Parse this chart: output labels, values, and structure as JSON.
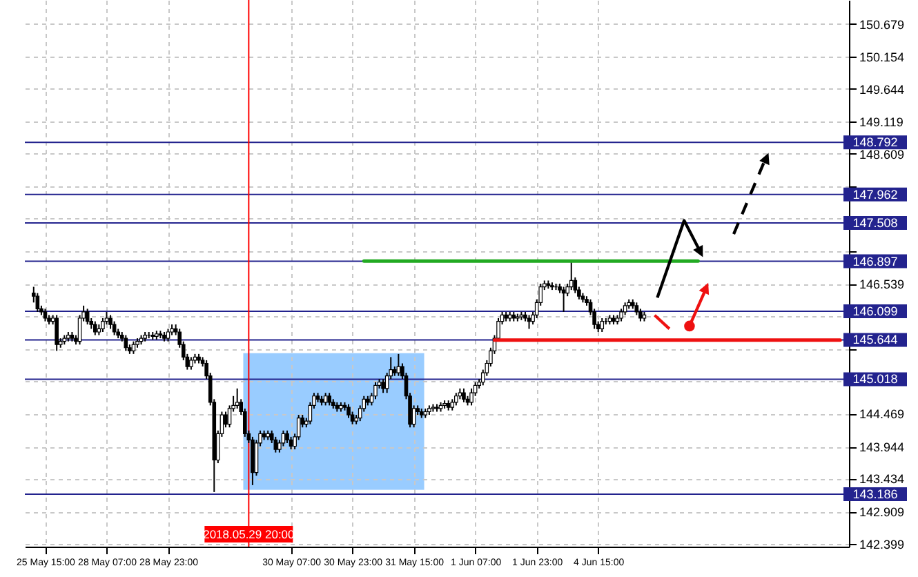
{
  "chart_data": {
    "type": "candlestick",
    "categories": [
      null,
      null,
      null,
      "25 May 15:00",
      null,
      null,
      null,
      null,
      null,
      null,
      null,
      null,
      null,
      null,
      null,
      null,
      null,
      null,
      null,
      "28 May 07:00",
      null,
      null,
      null,
      null,
      null,
      null,
      null,
      null,
      null,
      null,
      null,
      null,
      null,
      null,
      null,
      "28 May 23:00",
      null,
      null,
      null,
      null,
      null,
      null,
      null,
      null,
      null,
      null,
      null,
      null,
      null,
      null,
      null,
      null,
      null,
      null,
      null,
      null,
      "2018.05.29 20:00",
      null,
      null,
      null,
      null,
      null,
      null,
      null,
      null,
      null,
      null,
      "30 May 07:00",
      null,
      null,
      null,
      null,
      null,
      null,
      null,
      null,
      null,
      null,
      null,
      null,
      null,
      null,
      null,
      "30 May 23:00",
      null,
      null,
      null,
      null,
      null,
      null,
      null,
      null,
      null,
      null,
      null,
      null,
      null,
      null,
      null,
      "31 May 15:00",
      null,
      null,
      null,
      null,
      null,
      null,
      null,
      null,
      null,
      null,
      null,
      null,
      null,
      null,
      null,
      "1 Jun 07:00",
      null,
      null,
      null,
      null,
      null,
      null,
      null,
      null,
      null,
      null,
      null,
      null,
      null,
      null,
      null,
      "1 Jun 23:00",
      null,
      null,
      null,
      null,
      null,
      null,
      null,
      null,
      null,
      null,
      null,
      null,
      null,
      null,
      null,
      "4 Jun 15:00",
      null,
      null,
      null,
      null,
      null,
      null,
      null,
      null,
      null,
      null,
      null,
      null,
      null,
      null,
      null,
      null,
      null,
      null,
      null,
      null,
      null,
      null,
      null,
      null,
      null,
      null,
      null,
      null,
      null,
      null,
      null,
      null,
      null,
      null,
      null,
      null,
      null,
      null,
      null,
      null,
      null,
      null,
      null,
      null,
      null,
      null,
      null,
      null,
      null,
      null,
      null,
      null,
      null,
      null,
      null,
      null,
      null,
      null,
      null,
      null,
      null,
      null,
      null
    ],
    "ohlc": [
      [
        146.39,
        146.49,
        146.24,
        146.34
      ],
      [
        146.34,
        146.39,
        146.09,
        146.14
      ],
      [
        146.14,
        146.19,
        146.04,
        146.09
      ],
      [
        146.09,
        146.14,
        145.94,
        145.99
      ],
      [
        145.99,
        146.04,
        145.89,
        145.94
      ],
      [
        145.94,
        146.04,
        145.89,
        145.99
      ],
      [
        145.99,
        146.04,
        145.47,
        145.57
      ],
      [
        145.57,
        145.67,
        145.52,
        145.62
      ],
      [
        145.62,
        145.72,
        145.57,
        145.67
      ],
      [
        145.67,
        145.77,
        145.62,
        145.72
      ],
      [
        145.72,
        145.77,
        145.62,
        145.67
      ],
      [
        145.67,
        145.72,
        145.57,
        145.62
      ],
      [
        145.62,
        146.04,
        145.57,
        145.99
      ],
      [
        145.99,
        146.19,
        145.94,
        146.09
      ],
      [
        146.09,
        146.14,
        145.89,
        145.94
      ],
      [
        145.94,
        145.99,
        145.82,
        145.89
      ],
      [
        145.89,
        145.94,
        145.72,
        145.77
      ],
      [
        145.77,
        145.89,
        145.72,
        145.82
      ],
      [
        145.82,
        145.99,
        145.77,
        145.94
      ],
      [
        145.94,
        146.09,
        145.89,
        145.99
      ],
      [
        145.99,
        146.04,
        145.82,
        145.89
      ],
      [
        145.89,
        145.94,
        145.72,
        145.77
      ],
      [
        145.77,
        145.82,
        145.67,
        145.72
      ],
      [
        145.72,
        145.77,
        145.62,
        145.67
      ],
      [
        145.67,
        145.72,
        145.47,
        145.52
      ],
      [
        145.52,
        145.57,
        145.42,
        145.47
      ],
      [
        145.47,
        145.62,
        145.42,
        145.57
      ],
      [
        145.57,
        145.67,
        145.52,
        145.62
      ],
      [
        145.62,
        145.72,
        145.57,
        145.67
      ],
      [
        145.67,
        145.77,
        145.62,
        145.72
      ],
      [
        145.72,
        145.77,
        145.67,
        145.72
      ],
      [
        145.72,
        145.77,
        145.65,
        145.7
      ],
      [
        145.7,
        145.79,
        145.65,
        145.74
      ],
      [
        145.74,
        145.79,
        145.67,
        145.72
      ],
      [
        145.72,
        145.77,
        145.62,
        145.67
      ],
      [
        145.67,
        145.82,
        145.62,
        145.77
      ],
      [
        145.77,
        145.89,
        145.72,
        145.82
      ],
      [
        145.82,
        145.89,
        145.72,
        145.77
      ],
      [
        145.77,
        145.82,
        145.52,
        145.57
      ],
      [
        145.57,
        145.62,
        145.32,
        145.37
      ],
      [
        145.37,
        145.42,
        145.17,
        145.22
      ],
      [
        145.22,
        145.37,
        145.17,
        145.32
      ],
      [
        145.32,
        145.42,
        145.27,
        145.37
      ],
      [
        145.37,
        145.42,
        145.27,
        145.32
      ],
      [
        145.32,
        145.37,
        145.22,
        145.27
      ],
      [
        145.27,
        145.32,
        145.02,
        145.07
      ],
      [
        145.07,
        145.12,
        144.6,
        144.65
      ],
      [
        144.65,
        144.7,
        143.22,
        143.73
      ],
      [
        143.73,
        144.2,
        143.68,
        144.15
      ],
      [
        144.15,
        144.5,
        144.1,
        144.45
      ],
      [
        144.45,
        144.5,
        144.25,
        144.3
      ],
      [
        144.3,
        144.6,
        144.25,
        144.55
      ],
      [
        144.55,
        144.75,
        144.5,
        144.6
      ],
      [
        144.6,
        144.87,
        144.55,
        144.65
      ],
      [
        144.65,
        144.7,
        144.45,
        144.5
      ],
      [
        144.5,
        144.55,
        144.1,
        144.15
      ],
      [
        144.15,
        144.2,
        144,
        144.05
      ],
      [
        144.05,
        144.1,
        143.33,
        143.53
      ],
      [
        143.53,
        144.05,
        143.48,
        144
      ],
      [
        144,
        144.2,
        143.95,
        144.15
      ],
      [
        144.15,
        144.2,
        144.05,
        144.1
      ],
      [
        144.1,
        144.2,
        144.05,
        144.15
      ],
      [
        144.15,
        144.2,
        144,
        144.05
      ],
      [
        144.05,
        144.1,
        143.85,
        143.9
      ],
      [
        143.9,
        144.05,
        143.85,
        144
      ],
      [
        144,
        144.2,
        143.95,
        144.15
      ],
      [
        144.15,
        144.2,
        144,
        144.05
      ],
      [
        144.05,
        144.1,
        143.9,
        143.95
      ],
      [
        143.95,
        144.15,
        143.9,
        144.1
      ],
      [
        144.1,
        144.45,
        144.05,
        144.4
      ],
      [
        144.4,
        144.45,
        144.25,
        144.3
      ],
      [
        144.3,
        144.4,
        144.25,
        144.35
      ],
      [
        144.35,
        144.65,
        144.3,
        144.6
      ],
      [
        144.6,
        144.8,
        144.55,
        144.75
      ],
      [
        144.75,
        144.8,
        144.65,
        144.7
      ],
      [
        144.7,
        144.75,
        144.6,
        144.65
      ],
      [
        144.65,
        144.8,
        144.6,
        144.75
      ],
      [
        144.75,
        144.8,
        144.6,
        144.65
      ],
      [
        144.65,
        144.7,
        144.55,
        144.6
      ],
      [
        144.6,
        144.65,
        144.5,
        144.55
      ],
      [
        144.55,
        144.65,
        144.5,
        144.6
      ],
      [
        144.6,
        144.65,
        144.52,
        144.57
      ],
      [
        144.57,
        144.62,
        144.4,
        144.45
      ],
      [
        144.45,
        144.5,
        144.3,
        144.35
      ],
      [
        144.35,
        144.45,
        144.3,
        144.4
      ],
      [
        144.4,
        144.6,
        144.35,
        144.55
      ],
      [
        144.55,
        144.75,
        144.5,
        144.7
      ],
      [
        144.7,
        144.75,
        144.6,
        144.65
      ],
      [
        144.65,
        144.8,
        144.6,
        144.75
      ],
      [
        144.75,
        144.97,
        144.7,
        144.92
      ],
      [
        144.92,
        145.02,
        144.87,
        144.97
      ],
      [
        144.97,
        145.02,
        144.8,
        144.87
      ],
      [
        144.87,
        145.12,
        144.8,
        145.07
      ],
      [
        145.07,
        145.37,
        145.02,
        145.17
      ],
      [
        145.17,
        145.22,
        145.07,
        145.12
      ],
      [
        145.12,
        145.42,
        145.07,
        145.22
      ],
      [
        145.22,
        145.27,
        145.02,
        145.07
      ],
      [
        145.07,
        145.12,
        144.7,
        144.75
      ],
      [
        144.75,
        144.8,
        144.25,
        144.3
      ],
      [
        144.3,
        144.6,
        144.25,
        144.55
      ],
      [
        144.55,
        144.6,
        144.45,
        144.5
      ],
      [
        144.5,
        144.55,
        144.4,
        144.45
      ],
      [
        144.45,
        144.55,
        144.4,
        144.5
      ],
      [
        144.5,
        144.6,
        144.45,
        144.55
      ],
      [
        144.55,
        144.62,
        144.5,
        144.57
      ],
      [
        144.57,
        144.62,
        144.5,
        144.55
      ],
      [
        144.55,
        144.65,
        144.5,
        144.6
      ],
      [
        144.6,
        144.68,
        144.55,
        144.63
      ],
      [
        144.63,
        144.68,
        144.52,
        144.57
      ],
      [
        144.57,
        144.7,
        144.52,
        144.65
      ],
      [
        144.65,
        144.8,
        144.6,
        144.75
      ],
      [
        144.75,
        144.87,
        144.7,
        144.8
      ],
      [
        144.8,
        144.87,
        144.65,
        144.7
      ],
      [
        144.7,
        144.75,
        144.6,
        144.65
      ],
      [
        144.65,
        144.87,
        144.6,
        144.8
      ],
      [
        144.8,
        144.97,
        144.75,
        144.92
      ],
      [
        144.92,
        145.02,
        144.87,
        144.97
      ],
      [
        144.97,
        145.17,
        144.92,
        145.12
      ],
      [
        145.12,
        145.32,
        145.07,
        145.27
      ],
      [
        145.27,
        145.52,
        145.22,
        145.47
      ],
      [
        145.47,
        145.72,
        145.42,
        145.67
      ],
      [
        145.67,
        145.99,
        145.62,
        145.94
      ],
      [
        145.94,
        146.09,
        145.89,
        146.04
      ],
      [
        146.04,
        146.09,
        145.94,
        145.99
      ],
      [
        145.99,
        146.09,
        145.94,
        146.04
      ],
      [
        146.04,
        146.09,
        145.94,
        145.99
      ],
      [
        145.99,
        146.06,
        145.94,
        146.01
      ],
      [
        146.01,
        146.09,
        145.96,
        146.04
      ],
      [
        146.04,
        146.09,
        145.94,
        145.99
      ],
      [
        145.99,
        146.04,
        145.82,
        145.94
      ],
      [
        145.94,
        146.09,
        145.89,
        146.04
      ],
      [
        146.04,
        146.29,
        145.99,
        146.24
      ],
      [
        146.24,
        146.54,
        146.19,
        146.49
      ],
      [
        146.49,
        146.59,
        146.44,
        146.54
      ],
      [
        146.54,
        146.59,
        146.46,
        146.51
      ],
      [
        146.51,
        146.56,
        146.44,
        146.49
      ],
      [
        146.49,
        146.54,
        146.44,
        146.49
      ],
      [
        146.49,
        146.54,
        146.39,
        146.44
      ],
      [
        146.44,
        146.49,
        146.09,
        146.39
      ],
      [
        146.39,
        146.54,
        146.34,
        146.49
      ],
      [
        146.49,
        146.89,
        146.44,
        146.59
      ],
      [
        146.59,
        146.64,
        146.39,
        146.44
      ],
      [
        146.44,
        146.49,
        146.29,
        146.34
      ],
      [
        146.34,
        146.39,
        146.24,
        146.29
      ],
      [
        146.29,
        146.34,
        146.19,
        146.24
      ],
      [
        146.24,
        146.29,
        146.04,
        146.09
      ],
      [
        146.09,
        146.14,
        145.82,
        145.89
      ],
      [
        145.89,
        145.94,
        145.77,
        145.82
      ],
      [
        145.82,
        145.99,
        145.77,
        145.94
      ],
      [
        145.94,
        145.99,
        145.89,
        145.94
      ],
      [
        145.94,
        146.04,
        145.89,
        145.99
      ],
      [
        145.99,
        146.04,
        145.89,
        145.94
      ],
      [
        145.94,
        146.04,
        145.89,
        145.99
      ],
      [
        145.99,
        146.14,
        145.94,
        146.09
      ],
      [
        146.09,
        146.24,
        146.04,
        146.19
      ],
      [
        146.19,
        146.29,
        146.14,
        146.24
      ],
      [
        146.24,
        146.29,
        146.14,
        146.19
      ],
      [
        146.19,
        146.24,
        146.04,
        146.09
      ],
      [
        146.09,
        146.14,
        145.94,
        145.99
      ],
      [
        145.99,
        146.09,
        145.94,
        146.04
      ],
      null,
      null,
      null,
      null,
      null,
      null,
      null,
      null,
      null,
      null,
      null,
      null,
      null,
      null,
      null,
      null,
      null,
      null,
      null,
      null,
      null,
      null,
      null,
      null,
      null,
      null,
      null,
      null,
      null,
      null,
      null,
      null,
      null,
      null,
      null,
      null,
      null,
      null,
      null,
      null,
      null,
      null,
      null,
      null,
      null,
      null,
      null,
      null,
      null,
      null,
      null
    ],
    "series": [
      {
        "type": "line",
        "color": "#22aa22",
        "values": [
          null,
          null,
          null,
          null,
          null,
          null,
          null,
          null,
          null,
          null,
          null,
          null,
          null,
          null,
          null,
          null,
          null,
          null,
          null,
          null,
          null,
          null,
          null,
          null,
          null,
          null,
          null,
          null,
          null,
          null,
          null,
          null,
          null,
          null,
          null,
          null,
          null,
          null,
          null,
          null,
          null,
          null,
          null,
          null,
          null,
          null,
          null,
          null,
          null,
          null,
          null,
          null,
          null,
          null,
          null,
          null,
          null,
          null,
          null,
          null,
          null,
          null,
          null,
          null,
          null,
          null,
          null,
          null,
          null,
          null,
          null,
          null,
          null,
          null,
          null,
          null,
          null,
          null,
          null,
          null,
          null,
          null,
          null,
          null,
          null,
          null,
          146.9,
          146.9,
          146.9,
          146.9,
          146.9,
          146.9,
          146.9,
          146.9,
          146.9,
          146.9,
          146.9,
          146.9,
          146.9,
          146.9,
          146.9,
          146.9,
          146.9,
          146.9,
          146.9,
          146.9,
          146.9,
          146.9,
          146.9,
          146.9,
          146.9,
          146.9,
          146.9,
          146.9,
          146.9,
          146.9,
          146.9,
          146.9,
          146.9,
          146.9,
          146.9,
          146.9,
          146.9,
          146.9,
          146.9,
          146.9,
          146.9,
          146.9,
          146.9,
          146.9,
          146.9,
          146.9,
          146.9,
          146.9,
          146.9,
          146.9,
          146.9,
          146.9,
          146.9,
          146.9,
          146.9,
          146.9,
          146.9,
          146.9,
          146.9,
          146.9,
          146.9,
          146.9,
          146.9,
          146.9,
          146.9,
          146.9,
          146.9,
          146.9,
          146.9,
          146.9,
          146.9,
          146.9,
          146.9,
          146.9,
          146.9,
          146.9,
          146.9,
          146.9,
          146.9,
          146.9,
          146.9,
          146.9,
          146.9,
          146.9,
          146.9,
          146.9,
          146.9,
          146.9,
          null,
          null,
          null,
          null,
          null,
          null,
          null,
          null,
          null,
          null,
          null,
          null,
          null,
          null,
          null,
          null,
          null,
          null,
          null,
          null,
          null,
          null,
          null,
          null,
          null,
          null,
          null,
          null,
          null,
          null,
          null,
          null,
          null,
          null,
          null,
          null,
          null
        ]
      },
      {
        "type": "line",
        "color": "#ee1111",
        "values": [
          null,
          null,
          null,
          null,
          null,
          null,
          null,
          null,
          null,
          null,
          null,
          null,
          null,
          null,
          null,
          null,
          null,
          null,
          null,
          null,
          null,
          null,
          null,
          null,
          null,
          null,
          null,
          null,
          null,
          null,
          null,
          null,
          null,
          null,
          null,
          null,
          null,
          null,
          null,
          null,
          null,
          null,
          null,
          null,
          null,
          null,
          null,
          null,
          null,
          null,
          null,
          null,
          null,
          null,
          null,
          null,
          null,
          null,
          null,
          null,
          null,
          null,
          null,
          null,
          null,
          null,
          null,
          null,
          null,
          null,
          null,
          null,
          null,
          null,
          null,
          null,
          null,
          null,
          null,
          null,
          null,
          null,
          null,
          null,
          null,
          null,
          null,
          null,
          null,
          null,
          null,
          null,
          null,
          null,
          null,
          null,
          null,
          null,
          null,
          null,
          null,
          null,
          null,
          null,
          null,
          null,
          null,
          null,
          null,
          null,
          null,
          null,
          null,
          null,
          null,
          null,
          null,
          null,
          null,
          null,
          145.64,
          145.64,
          145.64,
          145.64,
          145.64,
          145.64,
          145.64,
          145.64,
          145.64,
          145.64,
          145.64,
          145.64,
          145.64,
          145.64,
          145.64,
          145.64,
          145.64,
          145.64,
          145.64,
          145.64,
          145.64,
          145.64,
          145.64,
          145.64,
          145.64,
          145.64,
          145.64,
          145.64,
          145.64,
          145.64,
          145.64,
          145.64,
          145.64,
          145.64,
          145.64,
          145.64,
          145.64,
          145.64,
          145.64,
          145.64,
          145.64,
          145.64,
          145.64,
          145.64,
          145.64,
          145.64,
          145.64,
          145.64,
          145.64,
          145.64,
          145.64,
          145.64,
          145.64,
          145.64,
          145.64,
          145.64,
          145.64,
          145.64,
          145.64,
          145.64,
          145.64,
          145.64,
          145.64,
          145.64,
          145.64,
          145.64,
          145.64,
          145.64,
          145.64,
          145.64,
          145.64,
          145.64,
          145.64,
          145.64,
          145.64,
          145.64,
          145.64,
          145.64,
          145.64,
          145.64,
          145.64,
          145.64,
          145.64,
          145.64,
          145.64,
          145.64,
          145.64,
          145.64,
          145.64,
          145.64,
          145.64
        ]
      }
    ],
    "ylim": [
      142.35,
      151.06
    ],
    "yticks": [
      150.679,
      150.154,
      149.644,
      149.119,
      148.609,
      {
        "value": 148.084,
        "label": null
      },
      {
        "value": 147.574,
        "label": null
      },
      {
        "value": 147.049,
        "label": null
      },
      146.539,
      {
        "value": 146.014,
        "label": null
      },
      {
        "value": 145.504,
        "label": null
      },
      {
        "value": 144.979,
        "label": null
      },
      144.469,
      143.944,
      143.434,
      142.909,
      142.399
    ],
    "ref_lines": [
      {
        "axis": "y",
        "value": 148.792,
        "label": "148.792",
        "color": "#23238e"
      },
      {
        "axis": "y",
        "value": 147.962,
        "label": "147.962",
        "color": "#23238e"
      },
      {
        "axis": "y",
        "value": 147.508,
        "label": "147.508",
        "color": "#23238e"
      },
      {
        "axis": "y",
        "value": 146.897,
        "label": "146.897",
        "color": "#23238e"
      },
      {
        "axis": "y",
        "value": 146.099,
        "label": "146.099",
        "color": "#23238e"
      },
      {
        "axis": "y",
        "value": 145.644,
        "label": "145.644",
        "color": "#23238e"
      },
      {
        "axis": "y",
        "value": 145.018,
        "label": "145.018",
        "color": "#23238e"
      },
      {
        "axis": "y",
        "value": 143.186,
        "label": "143.186",
        "color": "#23238e"
      },
      {
        "axis": "x",
        "value": "2018.05.29 20:00",
        "color": "#ff0000"
      }
    ],
    "grid": true
  }
}
